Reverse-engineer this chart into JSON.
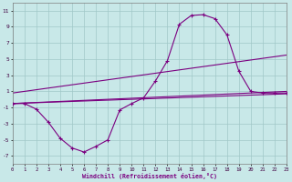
{
  "xlabel": "Windchill (Refroidissement éolien,°C)",
  "x_values": [
    0,
    1,
    2,
    3,
    4,
    5,
    6,
    7,
    8,
    9,
    10,
    11,
    12,
    13,
    14,
    15,
    16,
    17,
    18,
    19,
    20,
    21,
    22,
    23
  ],
  "curve_y": [
    -0.5,
    -0.5,
    -1.2,
    -2.8,
    -4.8,
    -6.0,
    -6.5,
    -5.8,
    -5.0,
    -1.3,
    -0.5,
    0.2,
    2.3,
    4.8,
    9.3,
    10.4,
    10.5,
    10.0,
    8.0,
    3.5,
    1.0,
    0.8,
    0.8,
    0.8
  ],
  "upper_line": {
    "x0": 0,
    "y0": 0.8,
    "x1": 23,
    "y1": 5.5
  },
  "mid_line": {
    "x0": 0,
    "y0": -0.5,
    "x1": 23,
    "y1": 1.0
  },
  "lower_line": {
    "x0": 0,
    "y0": -0.5,
    "x1": 23,
    "y1": 0.7
  },
  "line_color": "#7b0080",
  "bg_color": "#c8e8e8",
  "grid_color": "#a0c8c8",
  "ylim": [
    -8,
    12
  ],
  "xlim": [
    0,
    23
  ],
  "yticks": [
    -7,
    -5,
    -3,
    -1,
    1,
    3,
    5,
    7,
    9,
    11
  ],
  "xticks": [
    0,
    1,
    2,
    3,
    4,
    5,
    6,
    7,
    8,
    9,
    10,
    11,
    12,
    13,
    14,
    15,
    16,
    17,
    18,
    19,
    20,
    21,
    22,
    23
  ]
}
